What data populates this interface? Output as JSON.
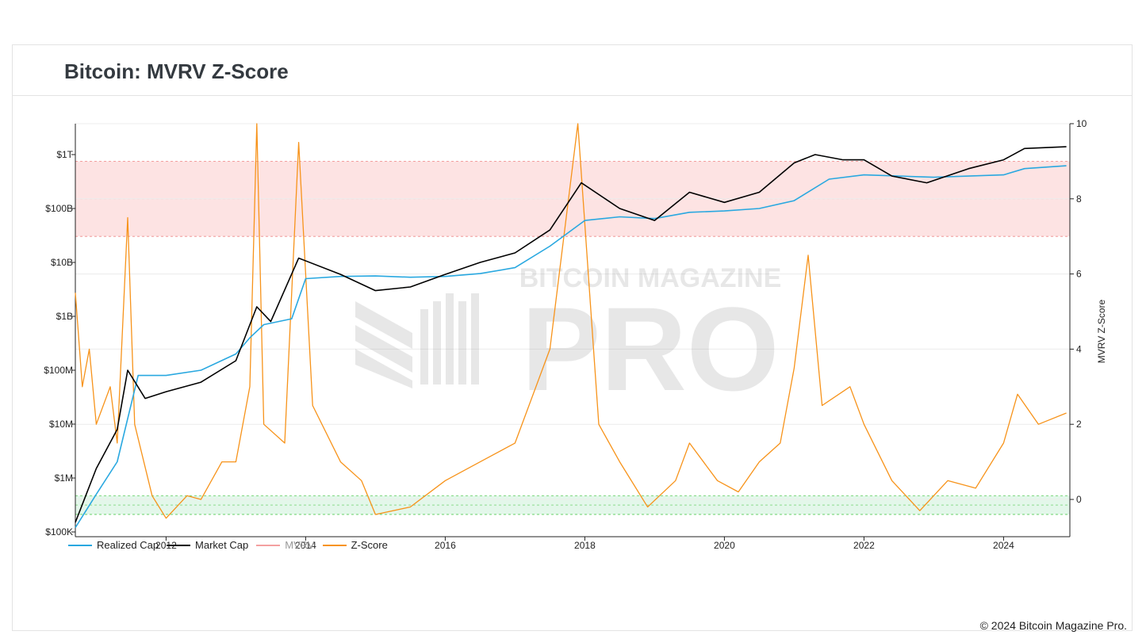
{
  "header": {
    "title": "Bitcoin: MVRV Z-Score"
  },
  "footer": {
    "copyright": "© 2024 Bitcoin Magazine Pro."
  },
  "watermark": {
    "line1": "BITCOIN MAGAZINE",
    "line2": "PRO"
  },
  "legend": [
    {
      "label": "Realized Cap",
      "color": "#29a8e0",
      "enabled": true
    },
    {
      "label": "Market Cap",
      "color": "#000000",
      "enabled": true
    },
    {
      "label": "MVRV",
      "color": "#f4a0a0",
      "enabled": false
    },
    {
      "label": "Z-Score",
      "color": "#f7931a",
      "enabled": true
    }
  ],
  "chart_data": {
    "type": "line",
    "title": "Bitcoin: MVRV Z-Score",
    "x_ticks": [
      "2012",
      "2014",
      "2016",
      "2018",
      "2020",
      "2022",
      "2024"
    ],
    "y_left": {
      "scale": "log",
      "ticks": [
        "$100K",
        "$1M",
        "$10M",
        "$100M",
        "$1B",
        "$10B",
        "$100B",
        "$1T"
      ]
    },
    "y_right": {
      "label": "MVRV Z-Score",
      "ticks": [
        "0",
        "2",
        "4",
        "6",
        "8",
        "10"
      ],
      "range": [
        -1,
        10
      ]
    },
    "bands": [
      {
        "name": "overvalued",
        "axis": "right",
        "range": [
          7,
          9
        ],
        "color": "#fde3e3"
      },
      {
        "name": "undervalued",
        "axis": "right",
        "range": [
          -0.4,
          0.1
        ],
        "color": "#e3f7ea"
      }
    ],
    "series": [
      {
        "name": "Realized Cap",
        "color": "#29a8e0",
        "axis": "left",
        "points": [
          [
            2010.7,
            120000.0
          ],
          [
            2011.0,
            500000.0
          ],
          [
            2011.3,
            2000000.0
          ],
          [
            2011.6,
            80000000.0
          ],
          [
            2012.0,
            80000000.0
          ],
          [
            2012.5,
            100000000.0
          ],
          [
            2013.0,
            200000000.0
          ],
          [
            2013.2,
            400000000.0
          ],
          [
            2013.4,
            700000000.0
          ],
          [
            2013.8,
            900000000.0
          ],
          [
            2014.0,
            5000000000.0
          ],
          [
            2014.5,
            5500000000.0
          ],
          [
            2015.0,
            5600000000.0
          ],
          [
            2015.5,
            5300000000.0
          ],
          [
            2016.0,
            5500000000.0
          ],
          [
            2016.5,
            6200000000.0
          ],
          [
            2017.0,
            8000000000.0
          ],
          [
            2017.5,
            20000000000.0
          ],
          [
            2018.0,
            60000000000.0
          ],
          [
            2018.5,
            70000000000.0
          ],
          [
            2019.0,
            65000000000.0
          ],
          [
            2019.5,
            85000000000.0
          ],
          [
            2020.0,
            90000000000.0
          ],
          [
            2020.5,
            100000000000.0
          ],
          [
            2021.0,
            140000000000.0
          ],
          [
            2021.5,
            350000000000.0
          ],
          [
            2022.0,
            420000000000.0
          ],
          [
            2022.5,
            400000000000.0
          ],
          [
            2023.0,
            380000000000.0
          ],
          [
            2023.5,
            400000000000.0
          ],
          [
            2024.0,
            420000000000.0
          ],
          [
            2024.3,
            550000000000.0
          ],
          [
            2024.9,
            620000000000.0
          ]
        ]
      },
      {
        "name": "Market Cap",
        "color": "#000000",
        "axis": "left",
        "points": [
          [
            2010.7,
            150000.0
          ],
          [
            2011.0,
            1500000.0
          ],
          [
            2011.3,
            8000000.0
          ],
          [
            2011.45,
            100000000.0
          ],
          [
            2011.7,
            30000000.0
          ],
          [
            2012.0,
            40000000.0
          ],
          [
            2012.5,
            60000000.0
          ],
          [
            2013.0,
            150000000.0
          ],
          [
            2013.3,
            1500000000.0
          ],
          [
            2013.5,
            800000000.0
          ],
          [
            2013.9,
            12000000000.0
          ],
          [
            2014.5,
            6000000000.0
          ],
          [
            2015.0,
            3000000000.0
          ],
          [
            2015.5,
            3500000000.0
          ],
          [
            2016.0,
            6000000000.0
          ],
          [
            2016.5,
            10000000000.0
          ],
          [
            2017.0,
            15000000000.0
          ],
          [
            2017.5,
            40000000000.0
          ],
          [
            2017.95,
            300000000000.0
          ],
          [
            2018.5,
            100000000000.0
          ],
          [
            2019.0,
            60000000000.0
          ],
          [
            2019.5,
            200000000000.0
          ],
          [
            2020.0,
            130000000000.0
          ],
          [
            2020.5,
            200000000000.0
          ],
          [
            2021.0,
            700000000000.0
          ],
          [
            2021.3,
            1000000000000.0
          ],
          [
            2021.7,
            800000000000.0
          ],
          [
            2022.0,
            800000000000.0
          ],
          [
            2022.4,
            400000000000.0
          ],
          [
            2022.9,
            300000000000.0
          ],
          [
            2023.5,
            550000000000.0
          ],
          [
            2024.0,
            800000000000.0
          ],
          [
            2024.3,
            1300000000000.0
          ],
          [
            2024.9,
            1400000000000.0
          ]
        ]
      },
      {
        "name": "Z-Score",
        "color": "#f7931a",
        "axis": "right",
        "points": [
          [
            2010.7,
            5.5
          ],
          [
            2010.8,
            3
          ],
          [
            2010.9,
            4
          ],
          [
            2011.0,
            2
          ],
          [
            2011.2,
            3
          ],
          [
            2011.3,
            1.5
          ],
          [
            2011.45,
            7.5
          ],
          [
            2011.55,
            2
          ],
          [
            2011.8,
            0.1
          ],
          [
            2012.0,
            -0.5
          ],
          [
            2012.3,
            0.1
          ],
          [
            2012.5,
            0
          ],
          [
            2012.8,
            1
          ],
          [
            2013.0,
            1
          ],
          [
            2013.2,
            3
          ],
          [
            2013.3,
            10
          ],
          [
            2013.4,
            2
          ],
          [
            2013.7,
            1.5
          ],
          [
            2013.9,
            9.5
          ],
          [
            2014.1,
            2.5
          ],
          [
            2014.5,
            1
          ],
          [
            2014.8,
            0.5
          ],
          [
            2015.0,
            -0.4
          ],
          [
            2015.5,
            -0.2
          ],
          [
            2016.0,
            0.5
          ],
          [
            2016.5,
            1
          ],
          [
            2017.0,
            1.5
          ],
          [
            2017.5,
            4
          ],
          [
            2017.9,
            10
          ],
          [
            2018.2,
            2
          ],
          [
            2018.5,
            1
          ],
          [
            2018.9,
            -0.2
          ],
          [
            2019.3,
            0.5
          ],
          [
            2019.5,
            1.5
          ],
          [
            2019.9,
            0.5
          ],
          [
            2020.2,
            0.2
          ],
          [
            2020.5,
            1
          ],
          [
            2020.8,
            1.5
          ],
          [
            2021.0,
            3.5
          ],
          [
            2021.2,
            6.5
          ],
          [
            2021.4,
            2.5
          ],
          [
            2021.8,
            3
          ],
          [
            2022.0,
            2
          ],
          [
            2022.4,
            0.5
          ],
          [
            2022.8,
            -0.3
          ],
          [
            2023.2,
            0.5
          ],
          [
            2023.6,
            0.3
          ],
          [
            2024.0,
            1.5
          ],
          [
            2024.2,
            2.8
          ],
          [
            2024.5,
            2
          ],
          [
            2024.9,
            2.3
          ]
        ]
      }
    ]
  }
}
